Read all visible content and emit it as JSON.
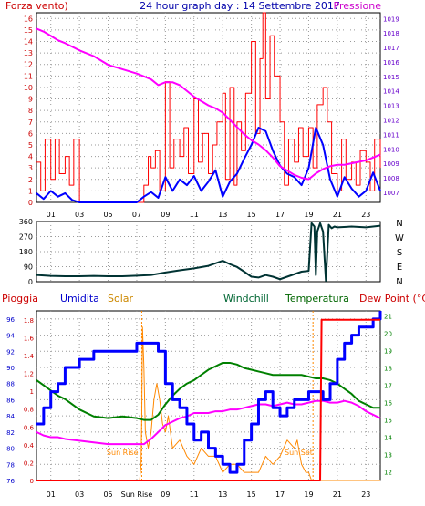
{
  "title": "24 hour graph day : 14 Settembre 2017",
  "x_hour_labels": [
    "01",
    "03",
    "05",
    "07",
    "09",
    "11",
    "13",
    "15",
    "17",
    "19",
    "21",
    "23"
  ],
  "colors": {
    "wind": "#ff0000",
    "wind_avg": "#0000ff",
    "pressure": "#ff00ff",
    "wind_dir": "#003333",
    "rain": "#ff0000",
    "humidity": "#0000ff",
    "solar": "#ff8800",
    "windchill": "#008000",
    "temperature": "#008000",
    "dewpoint": "#ff00ff",
    "grid": "#9a9a9a",
    "frame": "#000000",
    "left_axis_top": "#cc0000",
    "right_axis_top": "#6600cc",
    "left_axis_bottom": "#cc0000",
    "right_axis_bottom": "#008000",
    "dir_axis": "#000000"
  },
  "chart_data": [
    {
      "type": "line",
      "name": "wind-pressure",
      "labels": {
        "left": "Forza vento)",
        "right": "Pressione"
      },
      "y_left": {
        "ticks": [
          0,
          1,
          2,
          3,
          4,
          5,
          6,
          7,
          8,
          9,
          10,
          11,
          12,
          13,
          14,
          15,
          16
        ],
        "range": [
          0,
          16.5
        ]
      },
      "y_right": {
        "ticks": [
          1007,
          1008,
          1009,
          1010,
          1011,
          1012,
          1013,
          1014,
          1015,
          1016,
          1017,
          1018,
          1019
        ],
        "range": [
          1006.3,
          1019.4
        ]
      },
      "series": [
        {
          "key": "pressure",
          "axis": "right",
          "x": [
            0,
            0.5,
            1,
            1.5,
            2,
            3,
            4,
            5,
            6,
            7,
            7.5,
            8,
            8.5,
            9,
            9.5,
            10,
            10.5,
            11,
            11.5,
            12,
            12.5,
            13,
            13.5,
            14,
            14.5,
            15,
            15.5,
            16,
            16.5,
            17,
            17.5,
            18,
            18.5,
            19,
            19.5,
            20,
            20.5,
            21,
            21.5,
            22,
            22.5,
            23,
            23.5,
            24
          ],
          "values": [
            1018.3,
            1018.1,
            1017.8,
            1017.5,
            1017.3,
            1016.8,
            1016.4,
            1015.8,
            1015.5,
            1015.2,
            1015.0,
            1014.8,
            1014.4,
            1014.6,
            1014.6,
            1014.4,
            1014.0,
            1013.6,
            1013.3,
            1013.0,
            1012.8,
            1012.5,
            1012.0,
            1011.5,
            1011.0,
            1010.6,
            1010.3,
            1009.9,
            1009.4,
            1008.8,
            1008.5,
            1008.2,
            1008.0,
            1007.9,
            1008.3,
            1008.6,
            1008.8,
            1008.9,
            1008.9,
            1009.0,
            1009.1,
            1009.2,
            1009.4,
            1009.6
          ]
        },
        {
          "key": "wind_avg",
          "axis": "left",
          "x": [
            0,
            0.5,
            1,
            1.5,
            2,
            2.5,
            3,
            4,
            5,
            6,
            7,
            7.5,
            8,
            8.5,
            9,
            9.5,
            10,
            10.5,
            11,
            11.5,
            12,
            12.5,
            13,
            13.5,
            14,
            14.5,
            15,
            15.5,
            16,
            16.5,
            17,
            17.5,
            18,
            18.5,
            19,
            19.5,
            20,
            20.5,
            21,
            21.5,
            22,
            22.5,
            23,
            23.5,
            24
          ],
          "values": [
            0.8,
            0.3,
            1.0,
            0.5,
            0.8,
            0.2,
            0.0,
            0.0,
            0.0,
            0.0,
            0.0,
            0.5,
            0.9,
            0.4,
            2.2,
            1.0,
            2.0,
            1.5,
            2.3,
            1.0,
            1.8,
            2.8,
            0.5,
            1.8,
            2.5,
            3.8,
            5.0,
            6.5,
            6.2,
            4.5,
            3.2,
            2.5,
            2.2,
            1.5,
            3.0,
            6.5,
            5.0,
            2.0,
            0.5,
            2.2,
            1.2,
            0.5,
            1.0,
            2.6,
            1.0
          ]
        },
        {
          "key": "wind",
          "axis": "left",
          "x": [
            0,
            0.3,
            0.6,
            1,
            1.3,
            1.6,
            2,
            2.3,
            2.6,
            3,
            3.5,
            4,
            5,
            6,
            7,
            7.5,
            7.8,
            8,
            8.3,
            8.6,
            9,
            9.3,
            9.6,
            10,
            10.3,
            10.6,
            11,
            11.3,
            11.6,
            12,
            12.3,
            12.6,
            13,
            13.2,
            13.5,
            13.8,
            14,
            14.3,
            14.6,
            15,
            15.3,
            15.6,
            15.8,
            16,
            16.3,
            16.6,
            17,
            17.3,
            17.6,
            18,
            18.3,
            18.6,
            19,
            19.3,
            19.6,
            20,
            20.3,
            20.6,
            21,
            21.3,
            21.6,
            22,
            22.3,
            22.6,
            23,
            23.3,
            23.6,
            24
          ],
          "values": [
            3.5,
            1.0,
            5.5,
            2.0,
            5.5,
            2.5,
            4.0,
            1.5,
            5.5,
            0.0,
            0.0,
            0.0,
            0.0,
            0.0,
            0.0,
            1.5,
            4.0,
            3.0,
            4.5,
            1.0,
            10.5,
            3.0,
            5.5,
            4.0,
            6.5,
            2.5,
            9.0,
            3.5,
            6.0,
            2.5,
            5.0,
            7.0,
            9.5,
            2.0,
            10.0,
            1.5,
            7.0,
            4.5,
            9.5,
            14.0,
            6.0,
            12.5,
            16.5,
            9.0,
            14.5,
            11.0,
            7.0,
            1.5,
            5.5,
            3.5,
            6.5,
            4.0,
            6.5,
            3.0,
            8.5,
            10.0,
            7.0,
            2.5,
            1.0,
            5.5,
            2.0,
            3.5,
            1.5,
            4.5,
            3.5,
            1.0,
            5.5,
            3.0
          ]
        }
      ]
    },
    {
      "type": "line",
      "name": "wind-direction",
      "y_left": {
        "ticks": [
          0,
          90,
          180,
          270,
          360
        ],
        "range": [
          0,
          360
        ]
      },
      "direction_labels": [
        "N",
        "W",
        "S",
        "E",
        "N"
      ],
      "series": [
        {
          "key": "wind_dir",
          "x": [
            0,
            1,
            2,
            3,
            4,
            5,
            6,
            7,
            8,
            9,
            10,
            11,
            12,
            12.5,
            13,
            13.5,
            14,
            14.5,
            15,
            15.5,
            16,
            16.5,
            17,
            17.5,
            18,
            18.5,
            19,
            19.2,
            19.4,
            19.5,
            19.6,
            19.8,
            20,
            20.2,
            20.4,
            20.6,
            20.8,
            21,
            22,
            23,
            24
          ],
          "values": [
            40,
            35,
            33,
            33,
            35,
            33,
            33,
            36,
            40,
            55,
            68,
            80,
            95,
            110,
            125,
            105,
            88,
            60,
            30,
            25,
            40,
            30,
            15,
            30,
            45,
            60,
            65,
            350,
            330,
            40,
            300,
            350,
            300,
            5,
            340,
            320,
            330,
            325,
            330,
            325,
            335
          ]
        }
      ]
    },
    {
      "type": "line",
      "name": "rain-humidity-temp",
      "labels": {
        "rain": "Pioggia",
        "humidity": "Umidita",
        "solar": "Solar",
        "windchill": "Windchill",
        "temperature": "Temperatura",
        "dewpoint": "Dew Point (°C)"
      },
      "sun_labels": {
        "rise": "Sun Rise",
        "set": "Sun Set"
      },
      "y_humidity": {
        "ticks": [
          76,
          78,
          80,
          82,
          84,
          86,
          88,
          90,
          92,
          94,
          96
        ],
        "range": [
          76,
          97
        ]
      },
      "y_rain": {
        "ticks": [
          0,
          0.2,
          0.4,
          0.6,
          0.8,
          1,
          1.2,
          1.4,
          1.6,
          1.8
        ],
        "range": [
          0,
          1.9
        ]
      },
      "y_temp": {
        "ticks": [
          12,
          13,
          14,
          15,
          16,
          17,
          18,
          19,
          20,
          21
        ],
        "range": [
          11.5,
          21.3
        ]
      },
      "series": [
        {
          "key": "humidity",
          "axis": "humidity",
          "x": [
            0,
            0.5,
            1,
            1.5,
            2,
            3,
            4,
            5,
            6,
            7,
            8,
            8.5,
            9,
            9.5,
            10,
            10.5,
            11,
            11.5,
            12,
            12.5,
            13,
            13.5,
            14,
            14.5,
            15,
            15.5,
            16,
            16.5,
            17,
            17.5,
            18,
            18.5,
            19,
            19.5,
            20,
            20.5,
            21,
            21.5,
            22,
            22.5,
            23,
            23.5,
            24
          ],
          "values": [
            83,
            85,
            87,
            88,
            90,
            91,
            92,
            92,
            92,
            93,
            93,
            92,
            88,
            86,
            85,
            83,
            81,
            82,
            80,
            79,
            78,
            77,
            78,
            81,
            83,
            86,
            87,
            85,
            84,
            85,
            86,
            86,
            87,
            87,
            86,
            88,
            91,
            93,
            94,
            95,
            95,
            96,
            97
          ]
        },
        {
          "key": "temperature",
          "axis": "temp",
          "x": [
            0,
            0.5,
            1,
            1.5,
            2,
            3,
            4,
            5,
            6,
            7,
            7.5,
            8,
            8.5,
            9,
            9.5,
            10,
            10.5,
            11,
            11.5,
            12,
            12.5,
            13,
            13.5,
            14,
            14.5,
            15,
            15.5,
            16,
            16.5,
            17,
            17.5,
            18,
            18.5,
            19,
            19.5,
            20,
            20.5,
            21,
            21.5,
            22,
            22.5,
            23,
            23.5,
            24
          ],
          "values": [
            17.3,
            17.0,
            16.7,
            16.4,
            16.2,
            15.6,
            15.2,
            15.1,
            15.2,
            15.1,
            15.0,
            15.0,
            15.3,
            15.9,
            16.4,
            16.8,
            17.1,
            17.3,
            17.6,
            17.9,
            18.1,
            18.3,
            18.3,
            18.2,
            18.0,
            17.9,
            17.8,
            17.7,
            17.6,
            17.6,
            17.6,
            17.6,
            17.6,
            17.5,
            17.4,
            17.4,
            17.3,
            17.1,
            16.8,
            16.5,
            16.1,
            15.9,
            15.7,
            15.7
          ]
        },
        {
          "key": "dewpoint",
          "axis": "temp",
          "x": [
            0,
            0.5,
            1,
            1.5,
            2,
            3,
            4,
            5,
            6,
            7,
            7.5,
            8,
            8.5,
            9,
            9.5,
            10,
            10.5,
            11,
            11.5,
            12,
            12.5,
            13,
            13.5,
            14,
            14.5,
            15,
            15.5,
            16,
            16.5,
            17,
            17.5,
            18,
            18.5,
            19,
            19.5,
            20,
            20.5,
            21,
            21.5,
            22,
            22.5,
            23,
            23.5,
            24
          ],
          "values": [
            14.3,
            14.1,
            14.0,
            14.0,
            13.9,
            13.8,
            13.7,
            13.6,
            13.6,
            13.6,
            13.6,
            13.9,
            14.3,
            14.7,
            14.9,
            15.1,
            15.2,
            15.4,
            15.4,
            15.4,
            15.5,
            15.5,
            15.6,
            15.6,
            15.7,
            15.8,
            15.9,
            15.9,
            15.8,
            15.9,
            16.0,
            15.9,
            15.9,
            16.0,
            16.1,
            16.1,
            16.0,
            16.0,
            16.1,
            16.0,
            15.8,
            15.5,
            15.3,
            15.1
          ]
        },
        {
          "key": "solar",
          "axis": "humidity",
          "x": [
            0,
            7.2,
            7.3,
            7.35,
            7.4,
            7.5,
            7.6,
            7.8,
            8,
            8.2,
            8.4,
            8.6,
            8.8,
            9,
            9.2,
            9.5,
            10,
            10.5,
            11,
            11.5,
            12,
            12.5,
            13,
            13.5,
            14,
            14.5,
            15,
            15.5,
            16,
            16.5,
            17,
            17.5,
            18,
            18.2,
            18.5,
            18.8,
            19,
            19.2,
            19.3,
            19.4,
            24
          ],
          "values": [
            76,
            76,
            78,
            84,
            95,
            90,
            82,
            80,
            82,
            86,
            88,
            86,
            83,
            82,
            84,
            80,
            81,
            79,
            78,
            80,
            79,
            79,
            77,
            78,
            78,
            77,
            77,
            77,
            79,
            78,
            79,
            81,
            80,
            81,
            78,
            77,
            77,
            76,
            76,
            76,
            76
          ]
        },
        {
          "key": "rain",
          "axis": "rain",
          "x": [
            0,
            19.8,
            19.9,
            20,
            24
          ],
          "values": [
            0,
            0,
            1.8,
            1.8,
            1.8
          ]
        }
      ]
    }
  ]
}
